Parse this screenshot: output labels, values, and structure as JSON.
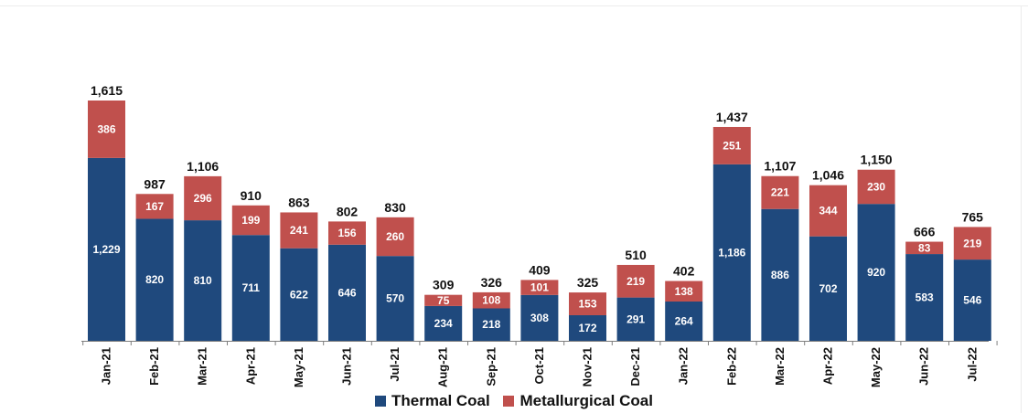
{
  "chart_data": {
    "type": "bar",
    "stacked": true,
    "categories": [
      "Jan-21",
      "Feb-21",
      "Mar-21",
      "Apr-21",
      "May-21",
      "Jun-21",
      "Jul-21",
      "Aug-21",
      "Sep-21",
      "Oct-21",
      "Nov-21",
      "Dec-21",
      "Jan-22",
      "Feb-22",
      "Mar-22",
      "Apr-22",
      "May-22",
      "Jun-22",
      "Jul-22"
    ],
    "series": [
      {
        "name": "Thermal Coal",
        "color": "#1f497d",
        "values": [
          1229,
          820,
          810,
          711,
          622,
          646,
          570,
          234,
          218,
          308,
          172,
          291,
          264,
          1186,
          886,
          702,
          920,
          583,
          546
        ],
        "labels": [
          "1,229",
          "820",
          "810",
          "711",
          "622",
          "646",
          "570",
          "234",
          "218",
          "308",
          "172",
          "291",
          "264",
          "1,186",
          "886",
          "702",
          "920",
          "583",
          "546"
        ]
      },
      {
        "name": "Metallurgical Coal",
        "color": "#c0504d",
        "values": [
          386,
          167,
          296,
          199,
          241,
          156,
          260,
          75,
          108,
          101,
          153,
          219,
          138,
          251,
          221,
          344,
          230,
          83,
          219
        ],
        "labels": [
          "386",
          "167",
          "296",
          "199",
          "241",
          "156",
          "260",
          "75",
          "108",
          "101",
          "153",
          "219",
          "138",
          "251",
          "221",
          "344",
          "230",
          "83",
          "219"
        ]
      }
    ],
    "totals": [
      1615,
      987,
      1106,
      910,
      863,
      802,
      830,
      309,
      326,
      409,
      325,
      510,
      402,
      1437,
      1107,
      1046,
      1150,
      666,
      765
    ],
    "total_labels": [
      "1,615",
      "987",
      "1,106",
      "910",
      "863",
      "802",
      "830",
      "309",
      "326",
      "409",
      "325",
      "510",
      "402",
      "1,437",
      "1,107",
      "1,046",
      "1,150",
      "666",
      "765"
    ],
    "ylim": [
      0,
      1615
    ],
    "grid": false,
    "legend_position": "bottom"
  }
}
